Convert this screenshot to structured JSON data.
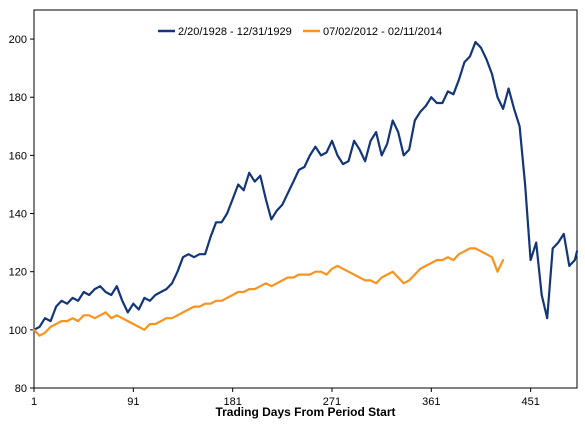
{
  "chart_data": {
    "type": "line",
    "title": "",
    "xlabel": "Trading Days From Period Start",
    "ylabel": "",
    "xlim": [
      1,
      493
    ],
    "ylim": [
      80,
      210
    ],
    "x_ticks": [
      1,
      91,
      181,
      271,
      361,
      451
    ],
    "y_ticks": [
      80,
      100,
      120,
      140,
      160,
      180,
      200
    ],
    "grid": false,
    "legend_position": "top-center",
    "series": [
      {
        "name": "2/20/1928 - 12/31/1929",
        "color": "#13357a",
        "x": [
          1,
          6,
          11,
          16,
          21,
          26,
          31,
          36,
          41,
          46,
          51,
          56,
          61,
          66,
          71,
          76,
          81,
          86,
          91,
          96,
          101,
          106,
          111,
          116,
          121,
          126,
          131,
          136,
          141,
          146,
          151,
          156,
          161,
          166,
          171,
          176,
          181,
          186,
          191,
          196,
          201,
          206,
          211,
          216,
          221,
          226,
          231,
          236,
          241,
          246,
          251,
          256,
          261,
          266,
          271,
          276,
          281,
          286,
          291,
          296,
          301,
          306,
          311,
          316,
          321,
          326,
          331,
          336,
          341,
          346,
          351,
          356,
          361,
          366,
          371,
          376,
          381,
          386,
          391,
          396,
          401,
          406,
          411,
          416,
          421,
          426,
          431,
          436,
          441,
          446,
          451,
          456,
          461,
          466,
          471,
          476,
          481,
          486,
          491,
          493
        ],
        "y": [
          100,
          101,
          104,
          103,
          108,
          110,
          109,
          111,
          110,
          113,
          112,
          114,
          115,
          113,
          112,
          115,
          110,
          106,
          109,
          107,
          111,
          110,
          112,
          113,
          114,
          116,
          120,
          125,
          126,
          125,
          126,
          126,
          132,
          137,
          137,
          140,
          145,
          150,
          148,
          154,
          151,
          153,
          145,
          138,
          141,
          143,
          147,
          151,
          155,
          156,
          160,
          163,
          160,
          161,
          165,
          160,
          157,
          158,
          165,
          162,
          158,
          165,
          168,
          160,
          164,
          172,
          168,
          160,
          162,
          172,
          175,
          177,
          180,
          178,
          178,
          182,
          181,
          186,
          192,
          194,
          199,
          197,
          193,
          188,
          180,
          176,
          183,
          176,
          170,
          150,
          124,
          130,
          112,
          104,
          128,
          130,
          133,
          122,
          124,
          127
        ]
      },
      {
        "name": "07/02/2012 - 02/11/2014",
        "color": "#f7941d",
        "x": [
          1,
          6,
          11,
          16,
          21,
          26,
          31,
          36,
          41,
          46,
          51,
          56,
          61,
          66,
          71,
          76,
          81,
          86,
          91,
          96,
          101,
          106,
          111,
          116,
          121,
          126,
          131,
          136,
          141,
          146,
          151,
          156,
          161,
          166,
          171,
          176,
          181,
          186,
          191,
          196,
          201,
          206,
          211,
          216,
          221,
          226,
          231,
          236,
          241,
          246,
          251,
          256,
          261,
          266,
          271,
          276,
          281,
          286,
          291,
          296,
          301,
          306,
          311,
          316,
          321,
          326,
          331,
          336,
          341,
          346,
          351,
          356,
          361,
          366,
          371,
          376,
          381,
          386,
          391,
          396,
          401,
          406,
          411,
          416,
          421,
          426
        ],
        "y": [
          100,
          98,
          99,
          101,
          102,
          103,
          103,
          104,
          103,
          105,
          105,
          104,
          105,
          106,
          104,
          105,
          104,
          103,
          102,
          101,
          100,
          102,
          102,
          103,
          104,
          104,
          105,
          106,
          107,
          108,
          108,
          109,
          109,
          110,
          110,
          111,
          112,
          113,
          113,
          114,
          114,
          115,
          116,
          115,
          116,
          117,
          118,
          118,
          119,
          119,
          119,
          120,
          120,
          119,
          121,
          122,
          121,
          120,
          119,
          118,
          117,
          117,
          116,
          118,
          119,
          120,
          118,
          116,
          117,
          119,
          121,
          122,
          123,
          124,
          124,
          125,
          124,
          126,
          127,
          128,
          128,
          127,
          126,
          125,
          120,
          124
        ]
      }
    ]
  }
}
